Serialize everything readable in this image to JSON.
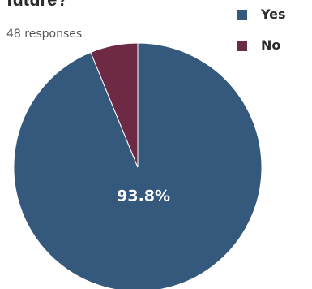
{
  "question": {
    "title": "future?",
    "responses": "48 responses"
  },
  "colors": {
    "yes": "#34597c",
    "no": "#6e2a45",
    "slice_label": "#ffffff",
    "slice_border": "#ffffff"
  },
  "chart_data": {
    "type": "pie",
    "title": "future?",
    "subtitle": "48 responses",
    "legend_position": "top-right",
    "slices": [
      {
        "label": "Yes",
        "value": 93.8,
        "display": "93.8%",
        "color": "#34597c",
        "show_label": true
      },
      {
        "label": "No",
        "value": 6.2,
        "display": "",
        "color": "#6e2a45",
        "show_label": false
      }
    ]
  }
}
